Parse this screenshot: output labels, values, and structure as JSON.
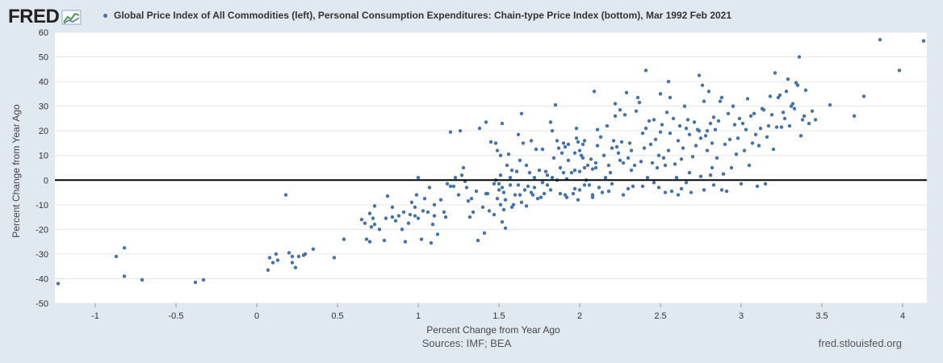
{
  "header": {
    "logo_text": "FRED",
    "legend_label": "Global Price Index of All Commodities (left), Personal Consumption Expenditures: Chain-type Price Index (bottom), Mar 1992 Feb 2021",
    "series_color": "#4572a7"
  },
  "footer": {
    "sources": "Sources: IMF; BEA",
    "site": "fred.stlouisfed.org"
  },
  "chart_data": {
    "type": "scatter",
    "xlabel": "Percent Change from Year Ago",
    "ylabel": "Percent Change from Year Ago",
    "xlim": [
      -1.25,
      4.15
    ],
    "ylim": [
      -50,
      60
    ],
    "x_ticks": [
      "-1",
      "-0.5",
      "0",
      "0.5",
      "1",
      "1.5",
      "2",
      "2.5",
      "3",
      "3.5",
      "4"
    ],
    "y_ticks": [
      "-50",
      "-40",
      "-30",
      "-20",
      "-10",
      "0",
      "10",
      "20",
      "30",
      "40",
      "50",
      "60"
    ],
    "zero_line": true,
    "grid": "horizontal",
    "points": [
      [
        -1.23,
        -42
      ],
      [
        -0.87,
        -31
      ],
      [
        -0.82,
        -27.5
      ],
      [
        -0.82,
        -39
      ],
      [
        -0.71,
        -40.5
      ],
      [
        -0.38,
        -41.5
      ],
      [
        -0.33,
        -40.5
      ],
      [
        0.07,
        -36.5
      ],
      [
        0.08,
        -31.5
      ],
      [
        0.1,
        -33.5
      ],
      [
        0.12,
        -30
      ],
      [
        0.13,
        -32.5
      ],
      [
        0.18,
        -6
      ],
      [
        0.2,
        -29.5
      ],
      [
        0.22,
        -31
      ],
      [
        0.22,
        -33.5
      ],
      [
        0.24,
        -35.5
      ],
      [
        0.26,
        -31
      ],
      [
        0.29,
        -30.5
      ],
      [
        0.3,
        -30
      ],
      [
        0.35,
        -28
      ],
      [
        0.48,
        -31.5
      ],
      [
        0.54,
        -24
      ],
      [
        0.65,
        -16
      ],
      [
        0.67,
        -17.5
      ],
      [
        0.68,
        -24
      ],
      [
        0.7,
        -25
      ],
      [
        0.7,
        -13.5
      ],
      [
        0.71,
        -19
      ],
      [
        0.72,
        -15.5
      ],
      [
        0.73,
        -18
      ],
      [
        0.73,
        -10.5
      ],
      [
        0.76,
        -20
      ],
      [
        0.79,
        -24.5
      ],
      [
        0.8,
        -15.5
      ],
      [
        0.81,
        -6.5
      ],
      [
        0.84,
        -11
      ],
      [
        0.84,
        -15
      ],
      [
        0.86,
        -16.5
      ],
      [
        0.88,
        -14.5
      ],
      [
        0.9,
        -20
      ],
      [
        0.91,
        -13
      ],
      [
        0.92,
        -25
      ],
      [
        0.94,
        -17.5
      ],
      [
        0.95,
        -14
      ],
      [
        0.96,
        -9
      ],
      [
        0.98,
        -14.5
      ],
      [
        0.98,
        -11
      ],
      [
        0.99,
        -6
      ],
      [
        1,
        1
      ],
      [
        1.0,
        -15.5
      ],
      [
        1.02,
        -24
      ],
      [
        1.03,
        -12.5
      ],
      [
        1.04,
        -7.5
      ],
      [
        1.06,
        -13
      ],
      [
        1.07,
        -3
      ],
      [
        1.08,
        -25.5
      ],
      [
        1.09,
        -18
      ],
      [
        1.1,
        -10
      ],
      [
        1.1,
        -14.5
      ],
      [
        1.12,
        -22
      ],
      [
        1.14,
        -8
      ],
      [
        1.16,
        -13
      ],
      [
        1.17,
        -15
      ],
      [
        1.18,
        -1.5
      ],
      [
        1.2,
        -2.5
      ],
      [
        1.2,
        19.5
      ],
      [
        1.22,
        -2.5
      ],
      [
        1.23,
        1
      ],
      [
        1.25,
        -6
      ],
      [
        1.26,
        20
      ],
      [
        1.27,
        2
      ],
      [
        1.28,
        5
      ],
      [
        1.29,
        -0.5
      ],
      [
        1.3,
        -3
      ],
      [
        1.31,
        -8.5
      ],
      [
        1.32,
        -15
      ],
      [
        1.33,
        -7.5
      ],
      [
        1.34,
        -13
      ],
      [
        1.36,
        -4.5
      ],
      [
        1.37,
        -24.5
      ],
      [
        1.38,
        21
      ],
      [
        1.4,
        -11
      ],
      [
        1.41,
        -21.5
      ],
      [
        1.42,
        -5.5
      ],
      [
        1.42,
        23.5
      ],
      [
        1.43,
        -5.5
      ],
      [
        1.44,
        -12.5
      ],
      [
        1.45,
        15.5
      ],
      [
        1.47,
        -1.5
      ],
      [
        1.47,
        -14
      ],
      [
        1.48,
        15
      ],
      [
        1.48,
        0
      ],
      [
        1.49,
        -7.5
      ],
      [
        1.49,
        12
      ],
      [
        1.5,
        -1.5
      ],
      [
        1.5,
        -4
      ],
      [
        1.51,
        2
      ],
      [
        1.51,
        10
      ],
      [
        1.51,
        -10
      ],
      [
        1.52,
        23
      ],
      [
        1.52,
        -17
      ],
      [
        1.52,
        -3
      ],
      [
        1.53,
        -12
      ],
      [
        1.53,
        -5
      ],
      [
        1.54,
        -8
      ],
      [
        1.54,
        -19.5
      ],
      [
        1.55,
        6
      ],
      [
        1.56,
        10.5
      ],
      [
        1.57,
        -2
      ],
      [
        1.57,
        1
      ],
      [
        1.58,
        4
      ],
      [
        1.58,
        -11
      ],
      [
        1.59,
        -10
      ],
      [
        1.6,
        -6
      ],
      [
        1.61,
        3.5
      ],
      [
        1.62,
        -2
      ],
      [
        1.62,
        18.5
      ],
      [
        1.63,
        -6
      ],
      [
        1.63,
        8
      ],
      [
        1.64,
        -9
      ],
      [
        1.64,
        27
      ],
      [
        1.65,
        15
      ],
      [
        1.66,
        -4
      ],
      [
        1.67,
        6
      ],
      [
        1.67,
        -10.5
      ],
      [
        1.68,
        -2.5
      ],
      [
        1.69,
        3
      ],
      [
        1.7,
        -5
      ],
      [
        1.7,
        16
      ],
      [
        1.71,
        -6
      ],
      [
        1.72,
        1
      ],
      [
        1.72,
        -3
      ],
      [
        1.73,
        12.5
      ],
      [
        1.74,
        -7.5
      ],
      [
        1.75,
        4
      ],
      [
        1.76,
        -7
      ],
      [
        1.77,
        -1
      ],
      [
        1.77,
        12.5
      ],
      [
        1.78,
        -5.5
      ],
      [
        1.79,
        3.5
      ],
      [
        1.8,
        -2
      ],
      [
        1.8,
        2
      ],
      [
        1.82,
        23.5
      ],
      [
        1.82,
        -4
      ],
      [
        1.83,
        20
      ],
      [
        1.83,
        1
      ],
      [
        1.84,
        9
      ],
      [
        1.85,
        30.5
      ],
      [
        1.86,
        16
      ],
      [
        1.86,
        0
      ],
      [
        1.87,
        13
      ],
      [
        1.88,
        -5.5
      ],
      [
        1.88,
        5
      ],
      [
        1.89,
        11
      ],
      [
        1.9,
        15
      ],
      [
        1.9,
        3
      ],
      [
        1.91,
        -6
      ],
      [
        1.91,
        13.5
      ],
      [
        1.92,
        0.5
      ],
      [
        1.92,
        -7
      ],
      [
        1.93,
        8
      ],
      [
        1.93,
        14.5
      ],
      [
        1.95,
        3
      ],
      [
        1.96,
        -5.5
      ],
      [
        1.97,
        11
      ],
      [
        1.97,
        4
      ],
      [
        1.97,
        -3.5
      ],
      [
        1.98,
        17
      ],
      [
        1.98,
        21
      ],
      [
        1.99,
        15.5
      ],
      [
        1.99,
        -8
      ],
      [
        2,
        -4
      ],
      [
        2,
        12
      ],
      [
        2,
        3.5
      ],
      [
        2.01,
        10
      ],
      [
        2.02,
        14.5
      ],
      [
        2.02,
        9
      ],
      [
        2.03,
        16
      ],
      [
        2.03,
        5
      ],
      [
        2.03,
        -2
      ],
      [
        2.04,
        0
      ],
      [
        2.05,
        6
      ],
      [
        2.06,
        -2
      ],
      [
        2.07,
        8.5
      ],
      [
        2.08,
        -7
      ],
      [
        2.08,
        4.5
      ],
      [
        2.08,
        -6
      ],
      [
        2.09,
        36
      ],
      [
        2.1,
        7
      ],
      [
        2.1,
        5
      ],
      [
        2.11,
        14
      ],
      [
        2.11,
        20.5
      ],
      [
        2.12,
        -3
      ],
      [
        2.13,
        17.5
      ],
      [
        2.14,
        -5
      ],
      [
        2.15,
        10
      ],
      [
        2.16,
        1
      ],
      [
        2.17,
        22
      ],
      [
        2.18,
        6
      ],
      [
        2.18,
        -4.5
      ],
      [
        2.19,
        3
      ],
      [
        2.2,
        -1.5
      ],
      [
        2.2,
        13
      ],
      [
        2.21,
        16
      ],
      [
        2.22,
        26
      ],
      [
        2.22,
        31
      ],
      [
        2.23,
        13.5
      ],
      [
        2.24,
        11
      ],
      [
        2.25,
        28.5
      ],
      [
        2.25,
        8
      ],
      [
        2.26,
        15.5
      ],
      [
        2.27,
        -6
      ],
      [
        2.27,
        7
      ],
      [
        2.28,
        26.5
      ],
      [
        2.29,
        35.5
      ],
      [
        2.3,
        -3.5
      ],
      [
        2.3,
        9
      ],
      [
        2.31,
        15
      ],
      [
        2.32,
        4
      ],
      [
        2.32,
        12
      ],
      [
        2.33,
        -2.5
      ],
      [
        2.34,
        6
      ],
      [
        2.35,
        28
      ],
      [
        2.36,
        33.5
      ],
      [
        2.37,
        31.5
      ],
      [
        2.38,
        7.5
      ],
      [
        2.39,
        19
      ],
      [
        2.39,
        -2.5
      ],
      [
        2.4,
        13
      ],
      [
        2.41,
        21
      ],
      [
        2.41,
        44.5
      ],
      [
        2.42,
        1
      ],
      [
        2.43,
        24
      ],
      [
        2.44,
        14.5
      ],
      [
        2.45,
        7
      ],
      [
        2.46,
        -1
      ],
      [
        2.46,
        24.5
      ],
      [
        2.47,
        16.5
      ],
      [
        2.48,
        5
      ],
      [
        2.49,
        10
      ],
      [
        2.49,
        -3
      ],
      [
        2.5,
        19.5
      ],
      [
        2.5,
        35
      ],
      [
        2.51,
        22.5
      ],
      [
        2.52,
        9
      ],
      [
        2.53,
        6
      ],
      [
        2.53,
        -5
      ],
      [
        2.54,
        27.5
      ],
      [
        2.55,
        12
      ],
      [
        2.55,
        40
      ],
      [
        2.56,
        33.5
      ],
      [
        2.56,
        19
      ],
      [
        2.57,
        -4.5
      ],
      [
        2.58,
        25
      ],
      [
        2.59,
        6.5
      ],
      [
        2.6,
        1
      ],
      [
        2.61,
        16
      ],
      [
        2.61,
        -6
      ],
      [
        2.62,
        22
      ],
      [
        2.63,
        8.5
      ],
      [
        2.63,
        -3.5
      ],
      [
        2.64,
        13
      ],
      [
        2.65,
        30
      ],
      [
        2.66,
        21
      ],
      [
        2.66,
        -1
      ],
      [
        2.67,
        24.5
      ],
      [
        2.68,
        18.5
      ],
      [
        2.68,
        3
      ],
      [
        2.69,
        -5
      ],
      [
        2.7,
        9.5
      ],
      [
        2.71,
        23.5
      ],
      [
        2.72,
        14
      ],
      [
        2.73,
        20.5
      ],
      [
        2.74,
        20
      ],
      [
        2.74,
        42.5
      ],
      [
        2.75,
        1.5
      ],
      [
        2.75,
        17
      ],
      [
        2.76,
        38.5
      ],
      [
        2.77,
        -4
      ],
      [
        2.77,
        32
      ],
      [
        2.78,
        18
      ],
      [
        2.79,
        12
      ],
      [
        2.79,
        20
      ],
      [
        2.8,
        36
      ],
      [
        2.81,
        23
      ],
      [
        2.81,
        2
      ],
      [
        2.82,
        15
      ],
      [
        2.82,
        5
      ],
      [
        2.83,
        25.5
      ],
      [
        2.83,
        -2
      ],
      [
        2.84,
        20.5
      ],
      [
        2.85,
        9
      ],
      [
        2.86,
        24
      ],
      [
        2.87,
        32
      ],
      [
        2.88,
        33.5
      ],
      [
        2.88,
        -4
      ],
      [
        2.89,
        2.5
      ],
      [
        2.9,
        14.5
      ],
      [
        2.91,
        -4.5
      ],
      [
        2.92,
        27
      ],
      [
        2.93,
        16.5
      ],
      [
        2.94,
        5
      ],
      [
        2.95,
        30
      ],
      [
        2.96,
        22.5
      ],
      [
        2.97,
        10.5
      ],
      [
        2.98,
        17
      ],
      [
        2.99,
        25
      ],
      [
        3,
        -1.5
      ],
      [
        3.01,
        23
      ],
      [
        3.02,
        12
      ],
      [
        3.03,
        20.5
      ],
      [
        3.04,
        33
      ],
      [
        3.05,
        6
      ],
      [
        3.06,
        26
      ],
      [
        3.07,
        15
      ],
      [
        3.08,
        27
      ],
      [
        3.09,
        18.5
      ],
      [
        3.1,
        -2.5
      ],
      [
        3.11,
        14
      ],
      [
        3.12,
        21
      ],
      [
        3.13,
        29
      ],
      [
        3.14,
        28.5
      ],
      [
        3.15,
        -1.5
      ],
      [
        3.16,
        17.5
      ],
      [
        3.17,
        22
      ],
      [
        3.18,
        34
      ],
      [
        3.19,
        26.5
      ],
      [
        3.2,
        12.5
      ],
      [
        3.21,
        43.5
      ],
      [
        3.22,
        21.5
      ],
      [
        3.23,
        33.5
      ],
      [
        3.24,
        34.5
      ],
      [
        3.25,
        21.5
      ],
      [
        3.26,
        27.5
      ],
      [
        3.27,
        25
      ],
      [
        3.28,
        36
      ],
      [
        3.29,
        41
      ],
      [
        3.3,
        22
      ],
      [
        3.31,
        30
      ],
      [
        3.32,
        31
      ],
      [
        3.33,
        29
      ],
      [
        3.34,
        39.5
      ],
      [
        3.35,
        38.5
      ],
      [
        3.36,
        50
      ],
      [
        3.37,
        18
      ],
      [
        3.38,
        24.5
      ],
      [
        3.39,
        26
      ],
      [
        3.4,
        36.5
      ],
      [
        3.42,
        23
      ],
      [
        3.44,
        28
      ],
      [
        3.46,
        24.5
      ],
      [
        3.55,
        30.5
      ],
      [
        3.7,
        26
      ],
      [
        3.76,
        34
      ],
      [
        3.86,
        57
      ],
      [
        3.98,
        44.5
      ],
      [
        4.13,
        56.5
      ]
    ]
  }
}
